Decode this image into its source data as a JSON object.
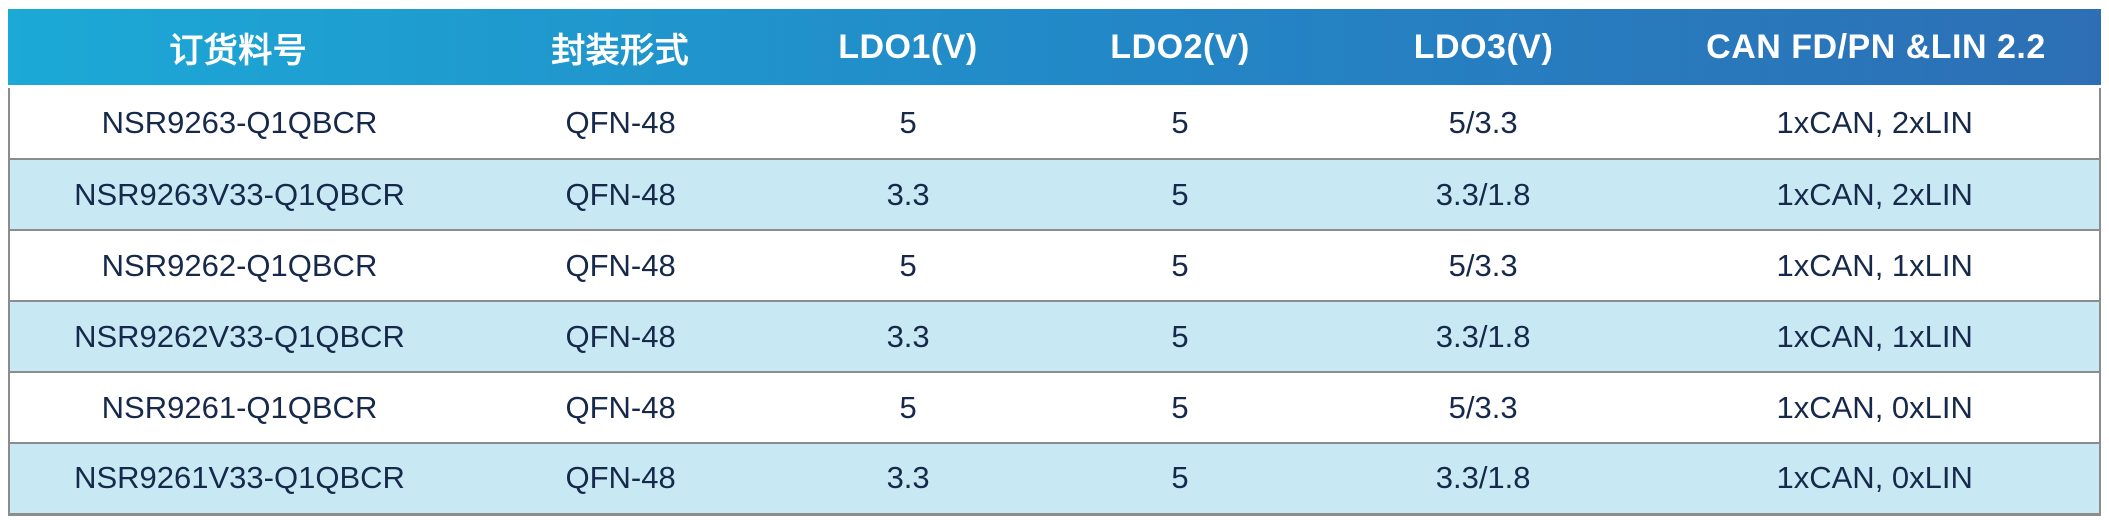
{
  "colors": {
    "header_gradient_left": "#1CA9D6",
    "header_gradient_right": "#2D6FB5",
    "header_text": "#FFFFFF",
    "row_white": "#FFFFFF",
    "row_alt_blue": "#C8E9F4",
    "cell_text": "#16294A",
    "grid_border": "#8C8C8C"
  },
  "table": {
    "columns": [
      {
        "label": "订货料号"
      },
      {
        "label": "封装形式"
      },
      {
        "label": "LDO1(V)"
      },
      {
        "label": "LDO2(V)"
      },
      {
        "label": "LDO3(V)"
      },
      {
        "label": "CAN FD/PN &LIN 2.2"
      }
    ],
    "rows": [
      {
        "cells": [
          "NSR9263-Q1QBCR",
          "QFN-48",
          "5",
          "5",
          "5/3.3",
          "1xCAN, 2xLIN"
        ]
      },
      {
        "cells": [
          "NSR9263V33-Q1QBCR",
          "QFN-48",
          "3.3",
          "5",
          "3.3/1.8",
          "1xCAN, 2xLIN"
        ]
      },
      {
        "cells": [
          "NSR9262-Q1QBCR",
          "QFN-48",
          "5",
          "5",
          "5/3.3",
          "1xCAN, 1xLIN"
        ]
      },
      {
        "cells": [
          "NSR9262V33-Q1QBCR",
          "QFN-48",
          "3.3",
          "5",
          "3.3/1.8",
          "1xCAN, 1xLIN"
        ]
      },
      {
        "cells": [
          "NSR9261-Q1QBCR",
          "QFN-48",
          "5",
          "5",
          "5/3.3",
          "1xCAN, 0xLIN"
        ]
      },
      {
        "cells": [
          "NSR9261V33-Q1QBCR",
          "QFN-48",
          "3.3",
          "5",
          "3.3/1.8",
          "1xCAN, 0xLIN"
        ]
      }
    ]
  }
}
